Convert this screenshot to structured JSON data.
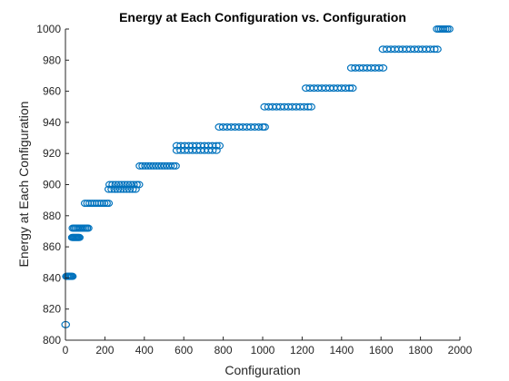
{
  "chart_data": {
    "type": "scatter",
    "title": "Energy at Each Configuration vs. Configuration",
    "xlabel": "Configuration",
    "ylabel": "Energy at Each Configuration",
    "xlim": [
      0,
      2000
    ],
    "ylim": [
      800,
      1000
    ],
    "xticks": [
      0,
      200,
      400,
      600,
      800,
      1000,
      1200,
      1400,
      1600,
      1800,
      2000
    ],
    "yticks": [
      800,
      820,
      840,
      860,
      880,
      900,
      920,
      940,
      960,
      980,
      1000
    ],
    "grid": false,
    "legend": "none",
    "marker": "open-circle",
    "color": "#0072BD",
    "series": [
      {
        "points": [
          [
            1,
            810
          ],
          [
            5,
            841
          ],
          [
            10,
            841
          ],
          [
            15,
            841
          ],
          [
            20,
            841
          ],
          [
            25,
            841
          ],
          [
            30,
            841
          ],
          [
            35,
            841
          ],
          [
            35,
            866
          ],
          [
            40,
            866
          ],
          [
            45,
            866
          ],
          [
            50,
            866
          ],
          [
            55,
            866
          ],
          [
            60,
            866
          ],
          [
            65,
            866
          ],
          [
            70,
            866
          ],
          [
            38,
            872
          ],
          [
            45,
            872
          ],
          [
            52,
            872
          ],
          [
            60,
            872
          ],
          [
            68,
            872
          ],
          [
            76,
            872
          ],
          [
            84,
            872
          ],
          [
            92,
            872
          ],
          [
            100,
            872
          ],
          [
            108,
            872
          ],
          [
            115,
            872
          ],
          [
            100,
            888
          ],
          [
            112,
            888
          ],
          [
            124,
            888
          ],
          [
            136,
            888
          ],
          [
            148,
            888
          ],
          [
            160,
            888
          ],
          [
            172,
            888
          ],
          [
            184,
            888
          ],
          [
            196,
            888
          ],
          [
            208,
            888
          ],
          [
            218,
            888
          ],
          [
            220,
            897
          ],
          [
            235,
            897
          ],
          [
            250,
            897
          ],
          [
            265,
            897
          ],
          [
            280,
            897
          ],
          [
            295,
            897
          ],
          [
            310,
            897
          ],
          [
            325,
            897
          ],
          [
            340,
            897
          ],
          [
            355,
            897
          ],
          [
            225,
            900
          ],
          [
            240,
            900
          ],
          [
            255,
            900
          ],
          [
            270,
            900
          ],
          [
            285,
            900
          ],
          [
            300,
            900
          ],
          [
            315,
            900
          ],
          [
            330,
            900
          ],
          [
            345,
            900
          ],
          [
            360,
            900
          ],
          [
            372,
            900
          ],
          [
            378,
            912
          ],
          [
            392,
            912
          ],
          [
            406,
            912
          ],
          [
            420,
            912
          ],
          [
            434,
            912
          ],
          [
            448,
            912
          ],
          [
            462,
            912
          ],
          [
            476,
            912
          ],
          [
            490,
            912
          ],
          [
            504,
            912
          ],
          [
            518,
            912
          ],
          [
            532,
            912
          ],
          [
            546,
            912
          ],
          [
            558,
            912
          ],
          [
            565,
            922
          ],
          [
            585,
            922
          ],
          [
            605,
            922
          ],
          [
            625,
            922
          ],
          [
            645,
            922
          ],
          [
            665,
            922
          ],
          [
            685,
            922
          ],
          [
            705,
            922
          ],
          [
            725,
            922
          ],
          [
            745,
            922
          ],
          [
            765,
            922
          ],
          [
            565,
            925
          ],
          [
            585,
            925
          ],
          [
            605,
            925
          ],
          [
            625,
            925
          ],
          [
            645,
            925
          ],
          [
            665,
            925
          ],
          [
            685,
            925
          ],
          [
            705,
            925
          ],
          [
            725,
            925
          ],
          [
            745,
            925
          ],
          [
            765,
            925
          ],
          [
            780,
            925
          ],
          [
            780,
            937
          ],
          [
            800,
            937
          ],
          [
            820,
            937
          ],
          [
            840,
            937
          ],
          [
            860,
            937
          ],
          [
            880,
            937
          ],
          [
            900,
            937
          ],
          [
            920,
            937
          ],
          [
            940,
            937
          ],
          [
            960,
            937
          ],
          [
            980,
            937
          ],
          [
            1000,
            937
          ],
          [
            1010,
            937
          ],
          [
            1010,
            950
          ],
          [
            1030,
            950
          ],
          [
            1050,
            950
          ],
          [
            1070,
            950
          ],
          [
            1090,
            950
          ],
          [
            1110,
            950
          ],
          [
            1130,
            950
          ],
          [
            1150,
            950
          ],
          [
            1170,
            950
          ],
          [
            1190,
            950
          ],
          [
            1210,
            950
          ],
          [
            1230,
            950
          ],
          [
            1245,
            950
          ],
          [
            1220,
            962
          ],
          [
            1240,
            962
          ],
          [
            1260,
            962
          ],
          [
            1280,
            962
          ],
          [
            1300,
            962
          ],
          [
            1320,
            962
          ],
          [
            1340,
            962
          ],
          [
            1360,
            962
          ],
          [
            1380,
            962
          ],
          [
            1400,
            962
          ],
          [
            1420,
            962
          ],
          [
            1440,
            962
          ],
          [
            1455,
            962
          ],
          [
            1450,
            975
          ],
          [
            1470,
            975
          ],
          [
            1490,
            975
          ],
          [
            1510,
            975
          ],
          [
            1530,
            975
          ],
          [
            1550,
            975
          ],
          [
            1570,
            975
          ],
          [
            1590,
            975
          ],
          [
            1610,
            975
          ],
          [
            1610,
            987
          ],
          [
            1630,
            987
          ],
          [
            1650,
            987
          ],
          [
            1670,
            987
          ],
          [
            1690,
            987
          ],
          [
            1710,
            987
          ],
          [
            1730,
            987
          ],
          [
            1750,
            987
          ],
          [
            1770,
            987
          ],
          [
            1790,
            987
          ],
          [
            1810,
            987
          ],
          [
            1830,
            987
          ],
          [
            1850,
            987
          ],
          [
            1870,
            987
          ],
          [
            1885,
            987
          ],
          [
            1885,
            1000
          ],
          [
            1895,
            1000
          ],
          [
            1905,
            1000
          ],
          [
            1915,
            1000
          ],
          [
            1925,
            1000
          ],
          [
            1935,
            1000
          ],
          [
            1945,
            1000
          ]
        ]
      }
    ]
  }
}
